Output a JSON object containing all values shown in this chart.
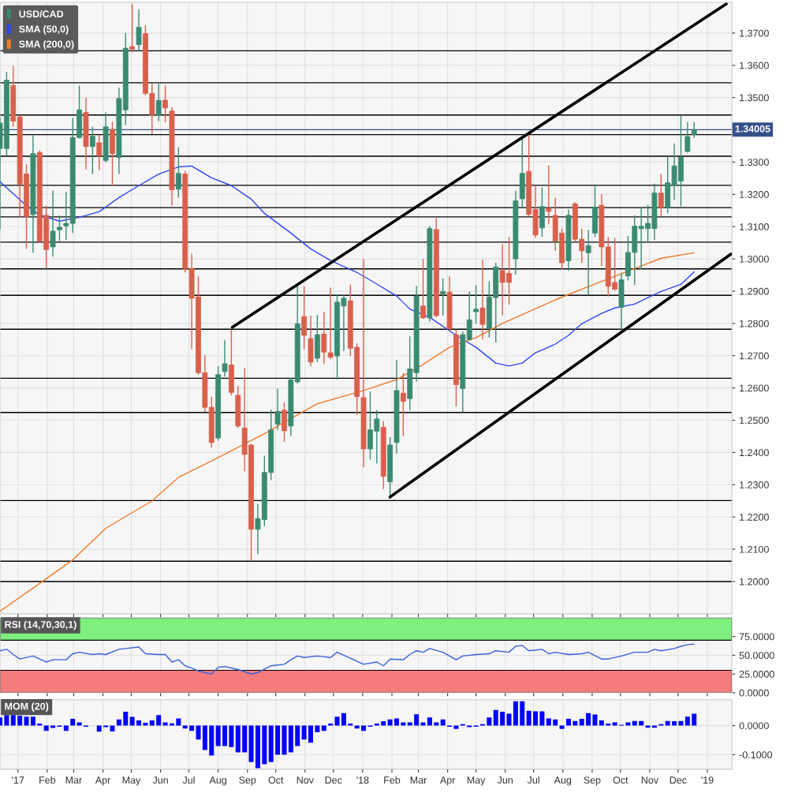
{
  "chart_data": [
    {
      "type": "candlestick",
      "legend": "top left",
      "grid": true,
      "tick_labels": "y",
      "xlim": [
        "2016-12-13",
        "2019-01-27"
      ],
      "ylim": [
        1.19,
        1.3795
      ],
      "yticks": [
        {
          "value": 1.2,
          "label": "1.2000"
        },
        {
          "value": 1.21,
          "label": "1.2100"
        },
        {
          "value": 1.22,
          "label": "1.2200"
        },
        {
          "value": 1.23,
          "label": "1.2300"
        },
        {
          "value": 1.24,
          "label": "1.2400"
        },
        {
          "value": 1.25,
          "label": "1.2500"
        },
        {
          "value": 1.26,
          "label": "1.2600"
        },
        {
          "value": 1.27,
          "label": "1.2700"
        },
        {
          "value": 1.28,
          "label": "1.2800"
        },
        {
          "value": 1.29,
          "label": "1.2900"
        },
        {
          "value": 1.3,
          "label": "1.3000"
        },
        {
          "value": 1.31,
          "label": "1.3100"
        },
        {
          "value": 1.32,
          "label": "1.3200"
        },
        {
          "value": 1.33,
          "label": "1.3300"
        },
        {
          "value": 1.35,
          "label": "1.3500"
        },
        {
          "value": 1.36,
          "label": "1.3600"
        },
        {
          "value": 1.37,
          "label": "1.3700"
        }
      ],
      "xticks": [
        {
          "value": "2017-01-01",
          "label": null
        },
        {
          "value": "2017-02-01",
          "label": null
        },
        {
          "value": "2017-03-01",
          "label": null
        },
        {
          "value": "2017-04-01",
          "label": null
        },
        {
          "value": "2017-05-01",
          "label": null
        },
        {
          "value": "2017-06-01",
          "label": null
        },
        {
          "value": "2017-07-01",
          "label": null
        },
        {
          "value": "2017-08-01",
          "label": null
        },
        {
          "value": "2017-09-01",
          "label": null
        },
        {
          "value": "2017-10-01",
          "label": null
        },
        {
          "value": "2017-11-01",
          "label": null
        },
        {
          "value": "2017-12-01",
          "label": null
        },
        {
          "value": "2018-01-01",
          "label": null
        },
        {
          "value": "2018-02-01",
          "label": null
        },
        {
          "value": "2018-03-01",
          "label": null
        },
        {
          "value": "2018-04-01",
          "label": null
        },
        {
          "value": "2018-05-01",
          "label": null
        },
        {
          "value": "2018-06-01",
          "label": null
        },
        {
          "value": "2018-07-01",
          "label": null
        },
        {
          "value": "2018-08-01",
          "label": null
        },
        {
          "value": "2018-09-01",
          "label": null
        },
        {
          "value": "2018-10-01",
          "label": null
        },
        {
          "value": "2018-11-01",
          "label": null
        },
        {
          "value": "2018-12-01",
          "label": null
        },
        {
          "value": "2019-01-01",
          "label": null
        }
      ],
      "ref_lines": [
        {
          "axis": "y",
          "value": 1.3645,
          "color": "#000000"
        },
        {
          "axis": "y",
          "value": 1.3546,
          "color": "#000000"
        },
        {
          "axis": "y",
          "value": 1.3446,
          "color": "#000000"
        },
        {
          "axis": "y",
          "value": 1.3385,
          "color": "#000000"
        },
        {
          "axis": "y",
          "value": 1.3318,
          "color": "#000000"
        },
        {
          "axis": "y",
          "value": 1.3228,
          "color": "#000000"
        },
        {
          "axis": "y",
          "value": 1.3159,
          "color": "#000000"
        },
        {
          "axis": "y",
          "value": 1.313,
          "color": "#000000"
        },
        {
          "axis": "y",
          "value": 1.3052,
          "color": "#000000"
        },
        {
          "axis": "y",
          "value": 1.2969,
          "color": "#000000"
        },
        {
          "axis": "y",
          "value": 1.2887,
          "color": "#000000"
        },
        {
          "axis": "y",
          "value": 1.2782,
          "color": "#000000"
        },
        {
          "axis": "y",
          "value": 1.263,
          "color": "#000000"
        },
        {
          "axis": "y",
          "value": 1.2524,
          "color": "#000000"
        },
        {
          "axis": "y",
          "value": 1.2251,
          "color": "#000000"
        },
        {
          "axis": "y",
          "value": 1.2063,
          "color": "#000000"
        },
        {
          "axis": "y",
          "value": 1.2,
          "color": "#000000"
        },
        {
          "axis": "y",
          "value": 1.34005,
          "label": "1.34005",
          "color": "#34508a"
        }
      ],
      "series": [
        {
          "name": "USD/CAD",
          "type": "candlestick",
          "color": "#3a8a72",
          "x": [
            "2016-12-13",
            "2016-12-20",
            "2016-12-27",
            "2017-01-03",
            "2017-01-10",
            "2017-01-17",
            "2017-01-24",
            "2017-01-31",
            "2017-02-07",
            "2017-02-14",
            "2017-02-21",
            "2017-02-28",
            "2017-03-07",
            "2017-03-14",
            "2017-03-21",
            "2017-03-28",
            "2017-04-04",
            "2017-04-11",
            "2017-04-18",
            "2017-04-25",
            "2017-05-02",
            "2017-05-09",
            "2017-05-16",
            "2017-05-23",
            "2017-05-30",
            "2017-06-06",
            "2017-06-13",
            "2017-06-20",
            "2017-06-27",
            "2017-07-04",
            "2017-07-11",
            "2017-07-18",
            "2017-07-25",
            "2017-08-01",
            "2017-08-08",
            "2017-08-15",
            "2017-08-22",
            "2017-08-29",
            "2017-09-05",
            "2017-09-12",
            "2017-09-19",
            "2017-09-26",
            "2017-10-03",
            "2017-10-10",
            "2017-10-17",
            "2017-10-24",
            "2017-10-31",
            "2017-11-07",
            "2017-11-14",
            "2017-11-21",
            "2017-11-28",
            "2017-12-05",
            "2017-12-12",
            "2017-12-19",
            "2017-12-26",
            "2018-01-02",
            "2018-01-09",
            "2018-01-16",
            "2018-01-23",
            "2018-01-30",
            "2018-02-06",
            "2018-02-13",
            "2018-02-20",
            "2018-02-27",
            "2018-03-06",
            "2018-03-13",
            "2018-03-20",
            "2018-03-27",
            "2018-04-03",
            "2018-04-10",
            "2018-04-17",
            "2018-04-24",
            "2018-05-01",
            "2018-05-08",
            "2018-05-15",
            "2018-05-22",
            "2018-05-29",
            "2018-06-05",
            "2018-06-12",
            "2018-06-19",
            "2018-06-26",
            "2018-07-03",
            "2018-07-10",
            "2018-07-17",
            "2018-07-24",
            "2018-07-31",
            "2018-08-07",
            "2018-08-14",
            "2018-08-21",
            "2018-08-28",
            "2018-09-04",
            "2018-09-11",
            "2018-09-18",
            "2018-09-25",
            "2018-10-02",
            "2018-10-09",
            "2018-10-16",
            "2018-10-23",
            "2018-10-30",
            "2018-11-06",
            "2018-11-13",
            "2018-11-20",
            "2018-11-27",
            "2018-12-04",
            "2018-12-11",
            "2018-12-18"
          ],
          "ohlc": [
            [
              1.3342,
              1.344,
              1.309,
              1.3421
            ],
            [
              1.3342,
              1.358,
              1.332,
              1.3554
            ],
            [
              1.3537,
              1.3598,
              1.3409,
              1.3427
            ],
            [
              1.344,
              1.3446,
              1.3129,
              1.3232
            ],
            [
              1.3263,
              1.3293,
              1.3031,
              1.3131
            ],
            [
              1.3137,
              1.3385,
              1.3019,
              1.3326
            ],
            [
              1.333,
              1.3336,
              1.305,
              1.3055
            ],
            [
              1.3135,
              1.3165,
              1.297,
              1.3029
            ],
            [
              1.3037,
              1.3211,
              1.3007,
              1.3086
            ],
            [
              1.309,
              1.3135,
              1.3055,
              1.3098
            ],
            [
              1.3102,
              1.3208,
              1.3058,
              1.311
            ],
            [
              1.311,
              1.3437,
              1.308,
              1.3376
            ],
            [
              1.3376,
              1.3537,
              1.3373,
              1.3462
            ],
            [
              1.3454,
              1.35,
              1.3277,
              1.3348
            ],
            [
              1.3348,
              1.3409,
              1.3263,
              1.338
            ],
            [
              1.336,
              1.3385,
              1.3275,
              1.332
            ],
            [
              1.3305,
              1.3454,
              1.3299,
              1.3409
            ],
            [
              1.3401,
              1.3425,
              1.3226,
              1.3326
            ],
            [
              1.3314,
              1.3531,
              1.3263,
              1.3497
            ],
            [
              1.3462,
              1.37,
              1.3415,
              1.3653
            ],
            [
              1.3658,
              1.379,
              1.364,
              1.365
            ],
            [
              1.3664,
              1.3773,
              1.3644,
              1.3718
            ],
            [
              1.3698,
              1.3724,
              1.3507,
              1.3513
            ],
            [
              1.3513,
              1.3543,
              1.3387,
              1.3446
            ],
            [
              1.3446,
              1.3546,
              1.3427,
              1.3491
            ],
            [
              1.3492,
              1.3537,
              1.3424,
              1.3468
            ],
            [
              1.3458,
              1.347,
              1.3165,
              1.3214
            ],
            [
              1.3216,
              1.3346,
              1.319,
              1.3265
            ],
            [
              1.3263,
              1.3273,
              1.2958,
              1.297
            ],
            [
              1.297,
              1.3016,
              1.272,
              1.2878
            ],
            [
              1.2882,
              1.2946,
              1.2641,
              1.2647
            ],
            [
              1.2647,
              1.2702,
              1.2525,
              1.254
            ],
            [
              1.254,
              1.2573,
              1.2415,
              1.2431
            ],
            [
              1.2445,
              1.2667,
              1.2436,
              1.2641
            ],
            [
              1.2651,
              1.2748,
              1.2635,
              1.2675
            ],
            [
              1.2671,
              1.2781,
              1.2577,
              1.2586
            ],
            [
              1.2577,
              1.2606,
              1.2476,
              1.2482
            ],
            [
              1.2476,
              1.2663,
              1.2342,
              1.2394
            ],
            [
              1.2423,
              1.2427,
              1.2065,
              1.2162
            ],
            [
              1.2162,
              1.224,
              1.2085,
              1.2195
            ],
            [
              1.2192,
              1.239,
              1.2171,
              1.2338
            ],
            [
              1.2338,
              1.2533,
              1.2314,
              1.247
            ],
            [
              1.2488,
              1.2598,
              1.247,
              1.2527
            ],
            [
              1.2531,
              1.2555,
              1.2433,
              1.2467
            ],
            [
              1.2482,
              1.2631,
              1.2451,
              1.2625
            ],
            [
              1.2619,
              1.2919,
              1.2614,
              1.2799
            ],
            [
              1.2821,
              1.2915,
              1.272,
              1.2763
            ],
            [
              1.2753,
              1.2824,
              1.2667,
              1.268
            ],
            [
              1.2692,
              1.2826,
              1.268,
              1.2765
            ],
            [
              1.2767,
              1.2836,
              1.2675,
              1.2711
            ],
            [
              1.2709,
              1.2911,
              1.2689,
              1.2695
            ],
            [
              1.2699,
              1.289,
              1.2626,
              1.2866
            ],
            [
              1.2854,
              1.289,
              1.2714,
              1.2878
            ],
            [
              1.287,
              1.2921,
              1.2699,
              1.2723
            ],
            [
              1.2726,
              1.2738,
              1.2516,
              1.2573
            ],
            [
              1.257,
              1.3,
              1.2354,
              1.2411
            ],
            [
              1.2411,
              1.2589,
              1.2378,
              1.247
            ],
            [
              1.2466,
              1.2531,
              1.2366,
              1.2504
            ],
            [
              1.2478,
              1.2497,
              1.2287,
              1.2326
            ],
            [
              1.2309,
              1.2448,
              1.2256,
              1.2423
            ],
            [
              1.2431,
              1.2687,
              1.2397,
              1.2592
            ],
            [
              1.2584,
              1.2646,
              1.2451,
              1.2558
            ],
            [
              1.2567,
              1.276,
              1.2531,
              1.2659
            ],
            [
              1.2647,
              1.2915,
              1.2619,
              1.2885
            ],
            [
              1.2854,
              1.3,
              1.2814,
              1.2817
            ],
            [
              1.2817,
              1.3102,
              1.2805,
              1.3094
            ],
            [
              1.3091,
              1.3126,
              1.282,
              1.2824
            ],
            [
              1.2891,
              1.2939,
              1.2824,
              1.2899
            ],
            [
              1.2897,
              1.2946,
              1.2778,
              1.2784
            ],
            [
              1.2765,
              1.2781,
              1.2543,
              1.261
            ],
            [
              1.2598,
              1.2775,
              1.2525,
              1.2765
            ],
            [
              1.275,
              1.2899,
              1.2748,
              1.2811
            ],
            [
              1.2836,
              1.2919,
              1.28,
              1.2844
            ],
            [
              1.2848,
              1.2997,
              1.275,
              1.2797
            ],
            [
              1.2785,
              1.293,
              1.2756,
              1.2882
            ],
            [
              1.288,
              1.2988,
              1.2741,
              1.2975
            ],
            [
              1.2964,
              1.3046,
              1.2824,
              1.2927
            ],
            [
              1.2955,
              1.3068,
              1.2858,
              1.2927
            ],
            [
              1.3,
              1.3211,
              1.2951,
              1.318
            ],
            [
              1.3186,
              1.3378,
              1.3158,
              1.3265
            ],
            [
              1.3271,
              1.3382,
              1.3131,
              1.3138
            ],
            [
              1.3153,
              1.3227,
              1.3065,
              1.3074
            ],
            [
              1.3096,
              1.3221,
              1.3068,
              1.3162
            ],
            [
              1.3157,
              1.329,
              1.3107,
              1.3147
            ],
            [
              1.3135,
              1.319,
              1.3025,
              1.3055
            ],
            [
              1.308,
              1.3094,
              1.2968,
              1.2988
            ],
            [
              1.2994,
              1.3153,
              1.2963,
              1.3135
            ],
            [
              1.3171,
              1.3175,
              1.3052,
              1.3061
            ],
            [
              1.3061,
              1.3094,
              1.2988,
              1.3025
            ],
            [
              1.3019,
              1.309,
              1.2887,
              1.3041
            ],
            [
              1.308,
              1.3227,
              1.3068,
              1.316
            ],
            [
              1.3166,
              1.32,
              1.2978,
              1.3037
            ],
            [
              1.3037,
              1.3068,
              1.2883,
              1.2915
            ],
            [
              1.2927,
              1.3065,
              1.2902,
              1.2906
            ],
            [
              1.285,
              1.2957,
              1.2781,
              1.2935
            ],
            [
              1.2947,
              1.3071,
              1.2933,
              1.302
            ],
            [
              1.302,
              1.3135,
              1.2919,
              1.3101
            ],
            [
              1.3094,
              1.3156,
              1.2968,
              1.3101
            ],
            [
              1.3094,
              1.3168,
              1.3049,
              1.311
            ],
            [
              1.3094,
              1.3233,
              1.3058,
              1.3204
            ],
            [
              1.3204,
              1.3263,
              1.3131,
              1.3159
            ],
            [
              1.3159,
              1.3318,
              1.3141,
              1.3236
            ],
            [
              1.3229,
              1.3358,
              1.3183,
              1.3288
            ],
            [
              1.3241,
              1.3443,
              1.3163,
              1.3315
            ],
            [
              1.3333,
              1.3424,
              1.333,
              1.3379
            ],
            [
              1.3385,
              1.3424,
              1.3375,
              1.34005
            ]
          ],
          "colors": [
            "#3a8a72",
            "#3a8a72",
            "#d9604c",
            "#d9604c",
            "#d9604c",
            "#3a8a72",
            "#d9604c",
            "#d9604c",
            "#3a8a72",
            "#3a8a72",
            "#3a8a72",
            "#3a8a72",
            "#3a8a72",
            "#d9604c",
            "#3a8a72",
            "#d9604c",
            "#3a8a72",
            "#d9604c",
            "#3a8a72",
            "#3a8a72",
            "#d9604c",
            "#3a8a72",
            "#d9604c",
            "#d9604c",
            "#3a8a72",
            "#d9604c",
            "#d9604c",
            "#3a8a72",
            "#d9604c",
            "#d9604c",
            "#d9604c",
            "#d9604c",
            "#d9604c",
            "#3a8a72",
            "#3a8a72",
            "#d9604c",
            "#d9604c",
            "#d9604c",
            "#d9604c",
            "#3a8a72",
            "#3a8a72",
            "#3a8a72",
            "#3a8a72",
            "#d9604c",
            "#3a8a72",
            "#3a8a72",
            "#d9604c",
            "#d9604c",
            "#3a8a72",
            "#d9604c",
            "#d9604c",
            "#3a8a72",
            "#3a8a72",
            "#d9604c",
            "#d9604c",
            "#d9604c",
            "#3a8a72",
            "#3a8a72",
            "#d9604c",
            "#3a8a72",
            "#3a8a72",
            "#d9604c",
            "#3a8a72",
            "#3a8a72",
            "#d9604c",
            "#3a8a72",
            "#d9604c",
            "#3a8a72",
            "#d9604c",
            "#d9604c",
            "#3a8a72",
            "#3a8a72",
            "#3a8a72",
            "#d9604c",
            "#3a8a72",
            "#3a8a72",
            "#d9604c",
            "#d9604c",
            "#3a8a72",
            "#3a8a72",
            "#d9604c",
            "#d9604c",
            "#3a8a72",
            "#d9604c",
            "#d9604c",
            "#d9604c",
            "#3a8a72",
            "#d9604c",
            "#d9604c",
            "#3a8a72",
            "#3a8a72",
            "#d9604c",
            "#d9604c",
            "#d9604c",
            "#3a8a72",
            "#3a8a72",
            "#3a8a72",
            "#3a8a72",
            "#3a8a72",
            "#3a8a72",
            "#d9604c",
            "#3a8a72",
            "#3a8a72",
            "#3a8a72",
            "#3a8a72",
            "#3a8a72"
          ]
        },
        {
          "name": "SMA (50,0)",
          "type": "line",
          "color": "#2f45f0",
          "x": [
            "2016-12-13",
            "2016-12-27",
            "2017-01-10",
            "2017-01-24",
            "2017-02-14",
            "2017-03-07",
            "2017-03-28",
            "2017-04-18",
            "2017-05-09",
            "2017-05-30",
            "2017-06-20",
            "2017-07-04",
            "2017-07-25",
            "2017-08-15",
            "2017-09-05",
            "2017-09-19",
            "2017-10-17",
            "2017-11-07",
            "2017-11-28",
            "2017-12-26",
            "2018-01-16",
            "2018-02-06",
            "2018-02-20",
            "2018-03-13",
            "2018-04-10",
            "2018-05-01",
            "2018-05-22",
            "2018-06-05",
            "2018-06-19",
            "2018-07-03",
            "2018-07-24",
            "2018-08-07",
            "2018-08-21",
            "2018-09-11",
            "2018-09-25",
            "2018-10-16",
            "2018-10-30",
            "2018-11-13",
            "2018-12-04",
            "2018-12-18"
          ],
          "values": [
            1.3239,
            1.3202,
            1.3165,
            1.3136,
            1.3117,
            1.3129,
            1.3146,
            1.319,
            1.3227,
            1.3263,
            1.3285,
            1.3288,
            1.3251,
            1.3227,
            1.3185,
            1.3141,
            1.308,
            1.3031,
            1.2995,
            1.2958,
            1.2922,
            1.2885,
            1.2844,
            1.2819,
            1.2763,
            1.2726,
            1.2677,
            1.2668,
            1.2677,
            1.2709,
            1.2736,
            1.2763,
            1.2799,
            1.2831,
            1.2848,
            1.286,
            1.288,
            1.2899,
            1.2921,
            1.296
          ]
        },
        {
          "name": "SMA (200,0)",
          "type": "line",
          "color": "#f07a2a",
          "x": [
            "2016-12-13",
            "2017-01-24",
            "2017-02-28",
            "2017-04-04",
            "2017-05-23",
            "2017-06-20",
            "2017-08-01",
            "2017-09-19",
            "2017-10-03",
            "2017-11-14",
            "2018-01-02",
            "2018-02-06",
            "2018-03-06",
            "2018-04-03",
            "2018-05-01",
            "2018-05-29",
            "2018-07-24",
            "2018-09-04",
            "2018-10-16",
            "2018-11-13",
            "2018-12-18"
          ],
          "values": [
            1.1908,
            1.1994,
            1.2067,
            1.2165,
            1.225,
            1.2323,
            1.2384,
            1.2458,
            1.2482,
            1.2551,
            1.2592,
            1.2626,
            1.2673,
            1.2726,
            1.2756,
            1.28,
            1.2873,
            1.2922,
            1.297,
            1.3002,
            1.3019
          ]
        },
        {
          "type": "line",
          "color": "#000000",
          "x": [
            "2017-08-16",
            "2019-01-21"
          ],
          "values": [
            1.2788,
            1.379
          ]
        },
        {
          "type": "line",
          "color": "#000000",
          "x": [
            "2018-01-30",
            "2019-01-26"
          ],
          "values": [
            1.2262,
            1.3015
          ]
        }
      ]
    },
    {
      "type": "line",
      "title": "RSI (14,70,30,1)",
      "grid": true,
      "tick_labels": "y",
      "xlim": [
        "2016-12-13",
        "2019-01-27"
      ],
      "ylim": [
        0,
        100
      ],
      "yticks": [
        {
          "value": 0,
          "label": "0.0000"
        },
        {
          "value": 25,
          "label": "25.0000"
        },
        {
          "value": 50,
          "label": "50.0000"
        },
        {
          "value": 75,
          "label": "75.0000"
        }
      ],
      "xticks": [
        {
          "value": "2017-01-01",
          "label": null
        },
        {
          "value": "2017-02-01",
          "label": null
        },
        {
          "value": "2017-03-01",
          "label": null
        },
        {
          "value": "2017-04-01",
          "label": null
        },
        {
          "value": "2017-05-01",
          "label": null
        },
        {
          "value": "2017-06-01",
          "label": null
        },
        {
          "value": "2017-07-01",
          "label": null
        },
        {
          "value": "2017-08-01",
          "label": null
        },
        {
          "value": "2017-09-01",
          "label": null
        },
        {
          "value": "2017-10-01",
          "label": null
        },
        {
          "value": "2017-11-01",
          "label": null
        },
        {
          "value": "2017-12-01",
          "label": null
        },
        {
          "value": "2018-01-01",
          "label": null
        },
        {
          "value": "2018-02-01",
          "label": null
        },
        {
          "value": "2018-03-01",
          "label": null
        },
        {
          "value": "2018-04-01",
          "label": null
        },
        {
          "value": "2018-05-01",
          "label": null
        },
        {
          "value": "2018-06-01",
          "label": null
        },
        {
          "value": "2018-07-01",
          "label": null
        },
        {
          "value": "2018-08-01",
          "label": null
        },
        {
          "value": "2018-09-01",
          "label": null
        },
        {
          "value": "2018-10-01",
          "label": null
        },
        {
          "value": "2018-11-01",
          "label": null
        },
        {
          "value": "2018-12-01",
          "label": null
        },
        {
          "value": "2019-01-01",
          "label": null
        }
      ],
      "bands": [
        {
          "axis": "y",
          "from": 70,
          "to": 100,
          "color": "#7ff07f"
        },
        {
          "axis": "y",
          "from": 0,
          "to": 30,
          "color": "#f47c7c"
        }
      ],
      "series": [
        {
          "color": "#3a5fd9",
          "x": [
            "2016-12-13",
            "2016-12-20",
            "2016-12-27",
            "2017-01-03",
            "2017-01-17",
            "2017-01-31",
            "2017-02-07",
            "2017-02-21",
            "2017-02-28",
            "2017-03-07",
            "2017-03-21",
            "2017-03-28",
            "2017-04-04",
            "2017-04-18",
            "2017-04-25",
            "2017-05-09",
            "2017-05-16",
            "2017-05-30",
            "2017-06-06",
            "2017-06-13",
            "2017-06-20",
            "2017-06-27",
            "2017-07-04",
            "2017-07-11",
            "2017-07-25",
            "2017-08-01",
            "2017-08-08",
            "2017-08-22",
            "2017-09-05",
            "2017-09-12",
            "2017-09-26",
            "2017-10-10",
            "2017-10-17",
            "2017-10-24",
            "2017-10-31",
            "2017-11-14",
            "2017-11-28",
            "2017-12-05",
            "2017-12-19",
            "2018-01-02",
            "2018-01-16",
            "2018-01-23",
            "2018-01-30",
            "2018-02-13",
            "2018-02-20",
            "2018-02-27",
            "2018-03-06",
            "2018-03-13",
            "2018-03-27",
            "2018-04-03",
            "2018-04-10",
            "2018-04-17",
            "2018-05-01",
            "2018-05-15",
            "2018-05-22",
            "2018-06-05",
            "2018-06-12",
            "2018-06-19",
            "2018-06-26",
            "2018-07-10",
            "2018-07-17",
            "2018-07-24",
            "2018-08-07",
            "2018-08-21",
            "2018-08-28",
            "2018-09-11",
            "2018-09-18",
            "2018-10-02",
            "2018-10-16",
            "2018-10-30",
            "2018-11-06",
            "2018-11-13",
            "2018-11-27",
            "2018-12-04",
            "2018-12-11",
            "2018-12-18"
          ],
          "values": [
            56,
            58,
            51,
            45,
            49,
            41,
            44,
            44,
            52,
            54,
            51,
            52,
            51,
            58,
            59,
            61,
            52,
            51,
            51,
            41,
            44,
            36,
            33,
            29,
            25,
            34,
            35,
            31,
            25,
            27,
            36,
            38,
            44,
            49,
            47,
            49,
            47,
            54,
            46,
            38,
            41,
            36,
            45,
            44,
            51,
            56,
            54,
            59,
            54,
            49,
            44,
            49,
            51,
            52,
            56,
            54,
            62,
            63,
            56,
            58,
            52,
            54,
            51,
            52,
            54,
            45,
            45,
            49,
            54,
            54,
            58,
            56,
            59,
            62,
            64,
            65
          ]
        }
      ]
    },
    {
      "type": "bar",
      "title": "MOM (20)",
      "grid": true,
      "color": "#0000ff",
      "xlim": [
        "2016-12-13",
        "2019-01-27"
      ],
      "ylim": [
        -0.15,
        0.089
      ],
      "yticks": [
        {
          "value": -0.1,
          "label": "-0.1000"
        },
        {
          "value": 0,
          "label": "0.0000"
        }
      ],
      "xticks": [
        {
          "value": "2017-01-01",
          "label": "'17"
        },
        {
          "value": "2017-02-01",
          "label": "Feb"
        },
        {
          "value": "2017-03-01",
          "label": "Mar"
        },
        {
          "value": "2017-04-01",
          "label": "Apr"
        },
        {
          "value": "2017-05-01",
          "label": "May"
        },
        {
          "value": "2017-06-01",
          "label": "Jun"
        },
        {
          "value": "2017-07-01",
          "label": "Jul"
        },
        {
          "value": "2017-08-01",
          "label": "Aug"
        },
        {
          "value": "2017-09-01",
          "label": "Sep"
        },
        {
          "value": "2017-10-01",
          "label": "Oct"
        },
        {
          "value": "2017-11-01",
          "label": "Nov"
        },
        {
          "value": "2017-12-01",
          "label": "Dec"
        },
        {
          "value": "2018-01-01",
          "label": "'18"
        },
        {
          "value": "2018-02-01",
          "label": "Feb"
        },
        {
          "value": "2018-03-01",
          "label": "Mar"
        },
        {
          "value": "2018-04-01",
          "label": "Apr"
        },
        {
          "value": "2018-05-01",
          "label": "May"
        },
        {
          "value": "2018-06-01",
          "label": "Jun"
        },
        {
          "value": "2018-07-01",
          "label": "Jul"
        },
        {
          "value": "2018-08-01",
          "label": "Aug"
        },
        {
          "value": "2018-09-01",
          "label": "Sep"
        },
        {
          "value": "2018-10-01",
          "label": "Oct"
        },
        {
          "value": "2018-11-01",
          "label": "Nov"
        },
        {
          "value": "2018-12-01",
          "label": "Dec"
        },
        {
          "value": "2019-01-01",
          "label": "'19"
        }
      ],
      "x": [
        "2016-12-13",
        "2016-12-20",
        "2016-12-27",
        "2017-01-03",
        "2017-01-10",
        "2017-01-17",
        "2017-01-24",
        "2017-01-31",
        "2017-02-07",
        "2017-02-14",
        "2017-02-21",
        "2017-02-28",
        "2017-03-07",
        "2017-03-14",
        "2017-03-21",
        "2017-03-28",
        "2017-04-04",
        "2017-04-11",
        "2017-04-18",
        "2017-04-25",
        "2017-05-02",
        "2017-05-09",
        "2017-05-16",
        "2017-05-23",
        "2017-05-30",
        "2017-06-06",
        "2017-06-13",
        "2017-06-20",
        "2017-06-27",
        "2017-07-04",
        "2017-07-11",
        "2017-07-18",
        "2017-07-25",
        "2017-08-01",
        "2017-08-08",
        "2017-08-15",
        "2017-08-22",
        "2017-08-29",
        "2017-09-05",
        "2017-09-12",
        "2017-09-19",
        "2017-09-26",
        "2017-10-03",
        "2017-10-10",
        "2017-10-17",
        "2017-10-24",
        "2017-10-31",
        "2017-11-07",
        "2017-11-14",
        "2017-11-21",
        "2017-11-28",
        "2017-12-05",
        "2017-12-12",
        "2017-12-19",
        "2017-12-26",
        "2018-01-02",
        "2018-01-09",
        "2018-01-16",
        "2018-01-23",
        "2018-01-30",
        "2018-02-06",
        "2018-02-13",
        "2018-02-20",
        "2018-02-27",
        "2018-03-06",
        "2018-03-13",
        "2018-03-20",
        "2018-03-27",
        "2018-04-03",
        "2018-04-10",
        "2018-04-17",
        "2018-04-24",
        "2018-05-01",
        "2018-05-08",
        "2018-05-15",
        "2018-05-22",
        "2018-05-29",
        "2018-06-05",
        "2018-06-12",
        "2018-06-19",
        "2018-06-26",
        "2018-07-03",
        "2018-07-10",
        "2018-07-17",
        "2018-07-24",
        "2018-07-31",
        "2018-08-07",
        "2018-08-14",
        "2018-08-21",
        "2018-08-28",
        "2018-09-04",
        "2018-09-11",
        "2018-09-18",
        "2018-09-25",
        "2018-10-02",
        "2018-10-09",
        "2018-10-16",
        "2018-10-23",
        "2018-10-30",
        "2018-11-06",
        "2018-11-13",
        "2018-11-20",
        "2018-11-27",
        "2018-12-04",
        "2018-12-11",
        "2018-12-18"
      ],
      "values": [
        0.028,
        0.036,
        0.036,
        0.034,
        0.031,
        0.031,
        0.007,
        -0.018,
        -0.008,
        -0.004,
        -0.018,
        0.023,
        0.011,
        -0.004,
        0,
        -0.021,
        -0.005,
        -0.02,
        0.021,
        0.048,
        0.03,
        0.018,
        0.01,
        0.018,
        0.036,
        0.011,
        0.008,
        0.025,
        -0.01,
        -0.018,
        -0.048,
        -0.084,
        -0.103,
        -0.07,
        -0.07,
        -0.074,
        -0.092,
        -0.092,
        -0.125,
        -0.146,
        -0.133,
        -0.125,
        -0.1,
        -0.1,
        -0.092,
        -0.07,
        -0.048,
        -0.059,
        -0.023,
        -0.018,
        0.007,
        0.031,
        0.043,
        0.007,
        -0.01,
        -0.018,
        -0.004,
        0.007,
        0.015,
        0.021,
        0.025,
        0.011,
        0.011,
        0.039,
        0.011,
        0.028,
        0.011,
        0.021,
        -0.004,
        -0.011,
        0.005,
        -0.005,
        -0.004,
        0.005,
        0.028,
        0.054,
        0.048,
        0.041,
        0.084,
        0.084,
        0.051,
        0.049,
        0.049,
        0.025,
        0.021,
        -0.011,
        0.023,
        0.016,
        0.023,
        0.043,
        0.038,
        0.018,
        0.007,
        0.011,
        0.003,
        0.011,
        0.016,
        0.016,
        -0.007,
        -0.007,
        0.005,
        0.016,
        0.015,
        0.016,
        0.031,
        0.041
      ]
    }
  ]
}
